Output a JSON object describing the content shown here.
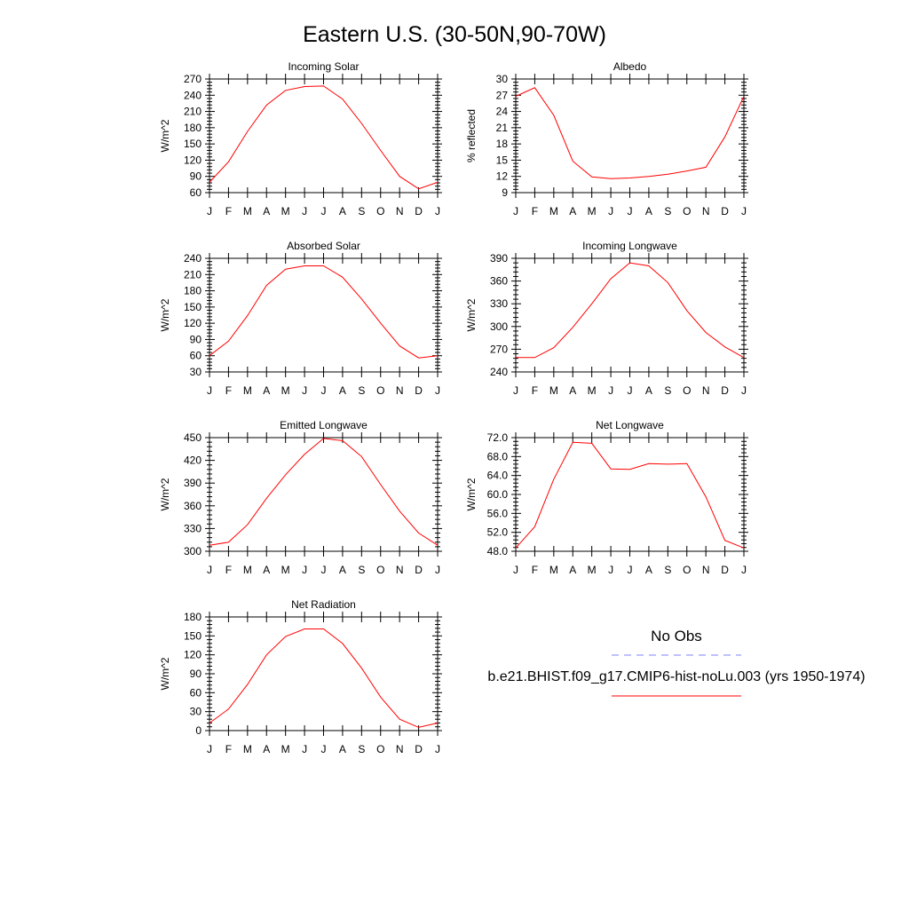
{
  "figure": {
    "title": "Eastern U.S. (30-50N,90-70W)",
    "months": [
      "J",
      "F",
      "M",
      "A",
      "M",
      "J",
      "J",
      "A",
      "S",
      "O",
      "N",
      "D",
      "J"
    ]
  },
  "legend": {
    "obs_label": "No Obs",
    "obs_color": "#8080ff",
    "model_label": "b.e21.BHIST.f09_g17.CMIP6-hist-noLu.003 (yrs 1950-1974)",
    "model_color": "#ff0000"
  },
  "chart_data": [
    {
      "type": "line",
      "title": "Incoming Solar",
      "ylabel": "W/m^2",
      "ylim": [
        60,
        270
      ],
      "yticks": [
        "60",
        "90",
        "120",
        "150",
        "180",
        "210",
        "240",
        "270"
      ],
      "x": [
        "J",
        "F",
        "M",
        "A",
        "M",
        "J",
        "J",
        "A",
        "S",
        "O",
        "N",
        "D",
        "J"
      ],
      "series": [
        {
          "values": [
            79,
            117,
            173,
            222,
            249,
            256,
            257,
            233,
            188,
            138,
            90,
            67,
            79
          ]
        }
      ]
    },
    {
      "type": "line",
      "title": "Albedo",
      "ylabel": "% reflected",
      "ylim": [
        9,
        30
      ],
      "yticks": [
        "9",
        "12",
        "15",
        "18",
        "21",
        "24",
        "27",
        "30"
      ],
      "x": [
        "J",
        "F",
        "M",
        "A",
        "M",
        "J",
        "J",
        "A",
        "S",
        "O",
        "N",
        "D",
        "J"
      ],
      "series": [
        {
          "values": [
            26.8,
            28.4,
            23.3,
            14.8,
            11.9,
            11.6,
            11.7,
            12.0,
            12.4,
            13.0,
            13.7,
            19.3,
            26.8
          ]
        }
      ]
    },
    {
      "type": "line",
      "title": "Absorbed Solar",
      "ylabel": "W/m^2",
      "ylim": [
        30,
        240
      ],
      "yticks": [
        "30",
        "60",
        "90",
        "120",
        "150",
        "180",
        "210",
        "240"
      ],
      "x": [
        "J",
        "F",
        "M",
        "A",
        "M",
        "J",
        "J",
        "A",
        "S",
        "O",
        "N",
        "D",
        "J"
      ],
      "series": [
        {
          "values": [
            60,
            87,
            134,
            190,
            220,
            226,
            226,
            205,
            165,
            120,
            78,
            56,
            60
          ]
        }
      ]
    },
    {
      "type": "line",
      "title": "Incoming Longwave",
      "ylabel": "W/m^2",
      "ylim": [
        240,
        390
      ],
      "yticks": [
        "240",
        "270",
        "300",
        "330",
        "360",
        "390"
      ],
      "x": [
        "J",
        "F",
        "M",
        "A",
        "M",
        "J",
        "J",
        "A",
        "S",
        "O",
        "N",
        "D",
        "J"
      ],
      "series": [
        {
          "values": [
            259,
            259,
            272,
            299,
            330,
            363,
            384,
            380,
            358,
            321,
            292,
            273,
            259
          ]
        }
      ]
    },
    {
      "type": "line",
      "title": "Emitted Longwave",
      "ylabel": "W/m^2",
      "ylim": [
        300,
        450
      ],
      "yticks": [
        "300",
        "330",
        "360",
        "390",
        "420",
        "450"
      ],
      "x": [
        "J",
        "F",
        "M",
        "A",
        "M",
        "J",
        "J",
        "A",
        "S",
        "O",
        "N",
        "D",
        "J"
      ],
      "series": [
        {
          "values": [
            308,
            312,
            335,
            370,
            401,
            428,
            449,
            446,
            425,
            388,
            353,
            324,
            308
          ]
        }
      ]
    },
    {
      "type": "line",
      "title": "Net Longwave",
      "ylabel": "W/m^2",
      "ylim": [
        48,
        72
      ],
      "yticks": [
        "48.0",
        "52.0",
        "56.0",
        "60.0",
        "64.0",
        "68.0",
        "72.0"
      ],
      "x": [
        "J",
        "F",
        "M",
        "A",
        "M",
        "J",
        "J",
        "A",
        "S",
        "O",
        "N",
        "D",
        "J"
      ],
      "series": [
        {
          "values": [
            48.7,
            53.2,
            63.2,
            71.0,
            70.8,
            65.4,
            65.3,
            66.5,
            66.4,
            66.5,
            59.5,
            50.3,
            48.7
          ]
        }
      ]
    },
    {
      "type": "line",
      "title": "Net Radiation",
      "ylabel": "W/m^2",
      "ylim": [
        0,
        180
      ],
      "yticks": [
        "0",
        "30",
        "60",
        "90",
        "120",
        "150",
        "180"
      ],
      "x": [
        "J",
        "F",
        "M",
        "A",
        "M",
        "J",
        "J",
        "A",
        "S",
        "O",
        "N",
        "D",
        "J"
      ],
      "series": [
        {
          "values": [
            12,
            34,
            73,
            120,
            149,
            161,
            161,
            138,
            99,
            53,
            18,
            5,
            12
          ]
        }
      ]
    }
  ]
}
